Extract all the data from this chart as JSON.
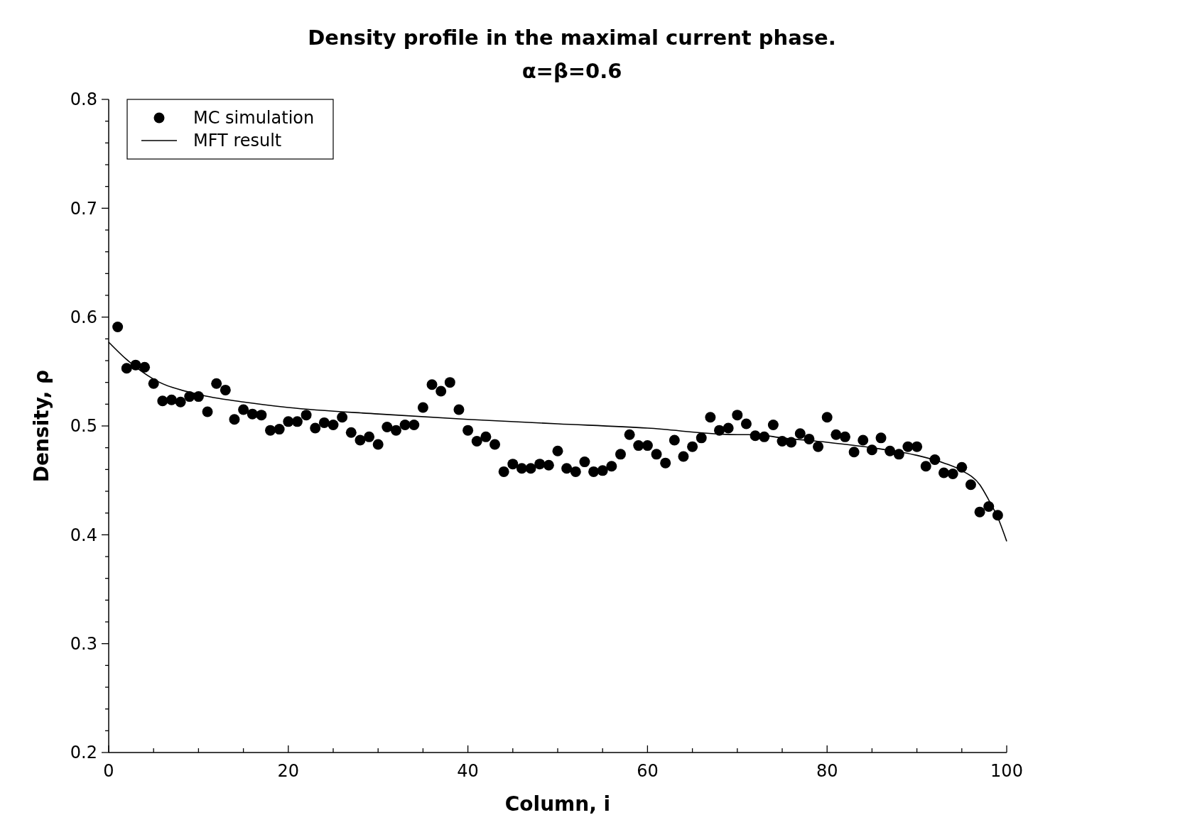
{
  "chart_data": {
    "type": "scatter",
    "title": "Density profile in the maximal current phase.",
    "subtitle": "α=β=0.6",
    "xlabel": "Column, i",
    "ylabel": "Density, ρ",
    "xlim": [
      0,
      100
    ],
    "ylim": [
      0.2,
      0.8
    ],
    "xticks": [
      0,
      {
        "value": 5,
        "label": null
      },
      {
        "value": 10,
        "label": null
      },
      {
        "value": 15,
        "label": null
      },
      20,
      {
        "value": 25,
        "label": null
      },
      {
        "value": 30,
        "label": null
      },
      {
        "value": 35,
        "label": null
      },
      40,
      {
        "value": 45,
        "label": null
      },
      {
        "value": 50,
        "label": null
      },
      {
        "value": 55,
        "label": null
      },
      60,
      {
        "value": 65,
        "label": null
      },
      {
        "value": 70,
        "label": null
      },
      {
        "value": 75,
        "label": null
      },
      80,
      {
        "value": 85,
        "label": null
      },
      {
        "value": 90,
        "label": null
      },
      {
        "value": 95,
        "label": null
      },
      100
    ],
    "yticks": [
      0.2,
      {
        "value": 0.22,
        "label": null
      },
      {
        "value": 0.24,
        "label": null
      },
      {
        "value": 0.26,
        "label": null
      },
      {
        "value": 0.28,
        "label": null
      },
      0.3,
      {
        "value": 0.32,
        "label": null
      },
      {
        "value": 0.34,
        "label": null
      },
      {
        "value": 0.36,
        "label": null
      },
      {
        "value": 0.38,
        "label": null
      },
      0.4,
      {
        "value": 0.42,
        "label": null
      },
      {
        "value": 0.44,
        "label": null
      },
      {
        "value": 0.46,
        "label": null
      },
      {
        "value": 0.48,
        "label": null
      },
      0.5,
      {
        "value": 0.52,
        "label": null
      },
      {
        "value": 0.54,
        "label": null
      },
      {
        "value": 0.56,
        "label": null
      },
      {
        "value": 0.58,
        "label": null
      },
      0.6,
      {
        "value": 0.62,
        "label": null
      },
      {
        "value": 0.64,
        "label": null
      },
      {
        "value": 0.66,
        "label": null
      },
      {
        "value": 0.68,
        "label": null
      },
      0.7,
      {
        "value": 0.72,
        "label": null
      },
      {
        "value": 0.74,
        "label": null
      },
      {
        "value": 0.76,
        "label": null
      },
      {
        "value": 0.78,
        "label": null
      },
      0.8
    ],
    "grid": false,
    "legend": "top left",
    "series": [
      {
        "name": "MC simulation",
        "marker": "circle",
        "color": "#000000",
        "x": [
          1,
          2,
          3,
          4,
          5,
          6,
          7,
          8,
          9,
          10,
          11,
          12,
          13,
          14,
          15,
          16,
          17,
          18,
          19,
          20,
          21,
          22,
          23,
          24,
          25,
          26,
          27,
          28,
          29,
          30,
          31,
          32,
          33,
          34,
          35,
          36,
          37,
          38,
          39,
          40,
          41,
          42,
          43,
          44,
          45,
          46,
          47,
          48,
          49,
          50,
          51,
          52,
          53,
          54,
          55,
          56,
          57,
          58,
          59,
          60,
          61,
          62,
          63,
          64,
          65,
          66,
          67,
          68,
          69,
          70,
          71,
          72,
          73,
          74,
          75,
          76,
          77,
          78,
          79,
          80,
          81,
          82,
          83,
          84,
          85,
          86,
          87,
          88,
          89,
          90,
          91,
          92,
          93,
          94,
          95,
          96,
          97,
          98,
          99
        ],
        "values": [
          0.591,
          0.553,
          0.556,
          0.554,
          0.539,
          0.523,
          0.524,
          0.522,
          0.527,
          0.527,
          0.513,
          0.539,
          0.533,
          0.506,
          0.515,
          0.511,
          0.51,
          0.496,
          0.497,
          0.504,
          0.504,
          0.51,
          0.498,
          0.503,
          0.501,
          0.508,
          0.494,
          0.487,
          0.49,
          0.483,
          0.499,
          0.496,
          0.501,
          0.501,
          0.517,
          0.538,
          0.532,
          0.54,
          0.515,
          0.496,
          0.486,
          0.49,
          0.483,
          0.458,
          0.465,
          0.461,
          0.461,
          0.465,
          0.464,
          0.477,
          0.461,
          0.458,
          0.467,
          0.458,
          0.459,
          0.463,
          0.474,
          0.492,
          0.482,
          0.482,
          0.474,
          0.466,
          0.487,
          0.472,
          0.481,
          0.489,
          0.508,
          0.496,
          0.498,
          0.51,
          0.502,
          0.491,
          0.49,
          0.501,
          0.486,
          0.485,
          0.493,
          0.488,
          0.481,
          0.508,
          0.492,
          0.49,
          0.476,
          0.487,
          0.478,
          0.489,
          0.477,
          0.474,
          0.481,
          0.481,
          0.463,
          0.469,
          0.457,
          0.456,
          0.462,
          0.446,
          0.421,
          0.426,
          0.418
        ]
      },
      {
        "name": "MFT result",
        "type": "line",
        "marker": "none",
        "line_style": "solid",
        "color": "#000000",
        "x": [
          0,
          2,
          5,
          10,
          15,
          20,
          30,
          40,
          50,
          60,
          70,
          72,
          75,
          80,
          85,
          90,
          93,
          95,
          97,
          98,
          99,
          100
        ],
        "values": [
          0.577,
          0.561,
          0.543,
          0.529,
          0.522,
          0.517,
          0.511,
          0.506,
          0.502,
          0.498,
          0.492,
          0.492,
          0.489,
          0.485,
          0.48,
          0.473,
          0.466,
          0.459,
          0.446,
          0.432,
          0.416,
          0.394
        ]
      }
    ]
  }
}
